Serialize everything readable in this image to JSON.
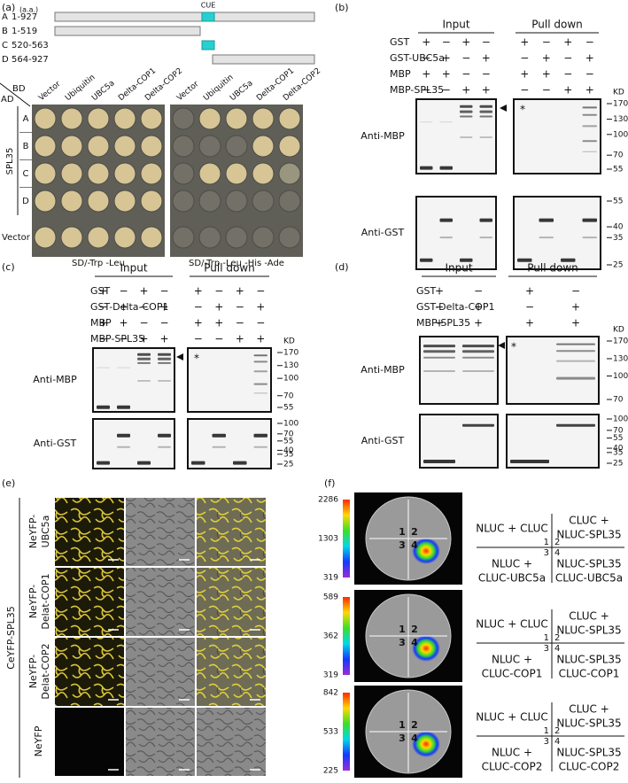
{
  "panel_a": {
    "label": "(a)",
    "unit": "(a.a.)",
    "domain_label": "CUE",
    "constructs": [
      {
        "id": "A",
        "range": "1-927"
      },
      {
        "id": "B",
        "range": "1-519"
      },
      {
        "id": "C",
        "range": "520-563"
      },
      {
        "id": "D",
        "range": "564-927"
      }
    ],
    "ad": "AD",
    "bd": "BD",
    "columns": [
      "Vector",
      "Ubiquitin",
      "UBC5a",
      "Delta-COP1",
      "Delta-COP2"
    ],
    "bait": "SPL35",
    "rows": [
      "A",
      "B",
      "C",
      "D"
    ],
    "control_row": "Vector",
    "media": [
      "SD/-Trp -Leu",
      "SD/-Trp -Leu -His -Ade"
    ]
  },
  "panel_b": {
    "label": "(b)",
    "groups": [
      "Input",
      "Pull down"
    ],
    "rows": [
      {
        "name": "GST",
        "signs": [
          "+",
          "−",
          "+",
          "−",
          "+",
          "−",
          "+",
          "−"
        ]
      },
      {
        "name": "GST-UBC5a",
        "signs": [
          "−",
          "+",
          "−",
          "+",
          "−",
          "+",
          "−",
          "+"
        ]
      },
      {
        "name": "MBP",
        "signs": [
          "+",
          "+",
          "−",
          "−",
          "+",
          "+",
          "−",
          "−"
        ]
      },
      {
        "name": "MBP-SPL35",
        "signs": [
          "−",
          "−",
          "+",
          "+",
          "−",
          "−",
          "+",
          "+"
        ]
      }
    ],
    "kd": "KD",
    "star": "*",
    "blots": [
      {
        "antibody": "Anti-MBP",
        "markers": [
          170,
          130,
          100,
          70,
          55
        ]
      },
      {
        "antibody": "Anti-GST",
        "markers": [
          55,
          40,
          35,
          25
        ]
      }
    ]
  },
  "panel_c": {
    "label": "(c)",
    "groups": [
      "Input",
      "Pull down"
    ],
    "rows": [
      {
        "name": "GST",
        "signs": [
          "+",
          "−",
          "+",
          "−",
          "+",
          "−",
          "+",
          "−"
        ]
      },
      {
        "name": "GST-Delta-COP1",
        "signs": [
          "−",
          "+",
          "−",
          "+",
          "−",
          "+",
          "−",
          "+"
        ]
      },
      {
        "name": "MBP",
        "signs": [
          "+",
          "+",
          "−",
          "−",
          "+",
          "+",
          "−",
          "−"
        ]
      },
      {
        "name": "MBP-SPL35",
        "signs": [
          "−",
          "−",
          "+",
          "+",
          "−",
          "−",
          "+",
          "+"
        ]
      }
    ],
    "kd": "KD",
    "star": "*",
    "blots": [
      {
        "antibody": "Anti-MBP",
        "markers": [
          170,
          130,
          100,
          70,
          55
        ]
      },
      {
        "antibody": "Anti-GST",
        "markers": [
          100,
          70,
          55,
          40,
          35,
          25
        ]
      }
    ]
  },
  "panel_d": {
    "label": "(d)",
    "groups": [
      "Input",
      "Pull down"
    ],
    "rows": [
      {
        "name": "GST",
        "signs": [
          "+",
          "−",
          "+",
          "−"
        ]
      },
      {
        "name": "GST-Delta-COP1",
        "signs": [
          "−",
          "+",
          "−",
          "+"
        ]
      },
      {
        "name": "MBP-SPL35",
        "signs": [
          "+",
          "+",
          "+",
          "+"
        ]
      }
    ],
    "kd": "KD",
    "star": "*",
    "blots": [
      {
        "antibody": "Anti-MBP",
        "markers": [
          170,
          130,
          100,
          70
        ]
      },
      {
        "antibody": "Anti-GST",
        "markers": [
          100,
          70,
          55,
          40,
          35,
          25
        ]
      }
    ]
  },
  "panel_e": {
    "label": "(e)",
    "construct": "CeYFP-SPL35",
    "rows": [
      [
        "NeYFP-",
        "UBC5a"
      ],
      [
        "NeYFP-",
        "Delat-COP1"
      ],
      [
        "NeYFP-",
        "Delat-COP2"
      ],
      [
        "NeYFP"
      ]
    ]
  },
  "panel_f": {
    "label": "(f)",
    "scales": [
      [
        2286,
        1303,
        319
      ],
      [
        589,
        362,
        319
      ],
      [
        842,
        533,
        225
      ]
    ],
    "quadrants": [
      1,
      2,
      3,
      4
    ],
    "tables": [
      {
        "top_left": [
          "NLUC + CLUC"
        ],
        "top_right": [
          "CLUC +",
          "NLUC-SPL35"
        ],
        "bottom_left": [
          "NLUC +",
          "CLUC-UBC5a"
        ],
        "bottom_right": [
          "NLUC-SPL35",
          "CLUC-UBC5a"
        ]
      },
      {
        "top_left": [
          "NLUC + CLUC"
        ],
        "top_right": [
          "CLUC +",
          "NLUC-SPL35"
        ],
        "bottom_left": [
          "NLUC +",
          "CLUC-COP1"
        ],
        "bottom_right": [
          "NLUC-SPL35",
          "CLUC-COP1"
        ]
      },
      {
        "top_left": [
          "NLUC + CLUC"
        ],
        "top_right": [
          "CLUC +",
          "NLUC-SPL35"
        ],
        "bottom_left": [
          "NLUC +",
          "CLUC-COP2"
        ],
        "bottom_right": [
          "NLUC-SPL35",
          "CLUC-COP2"
        ]
      }
    ]
  }
}
